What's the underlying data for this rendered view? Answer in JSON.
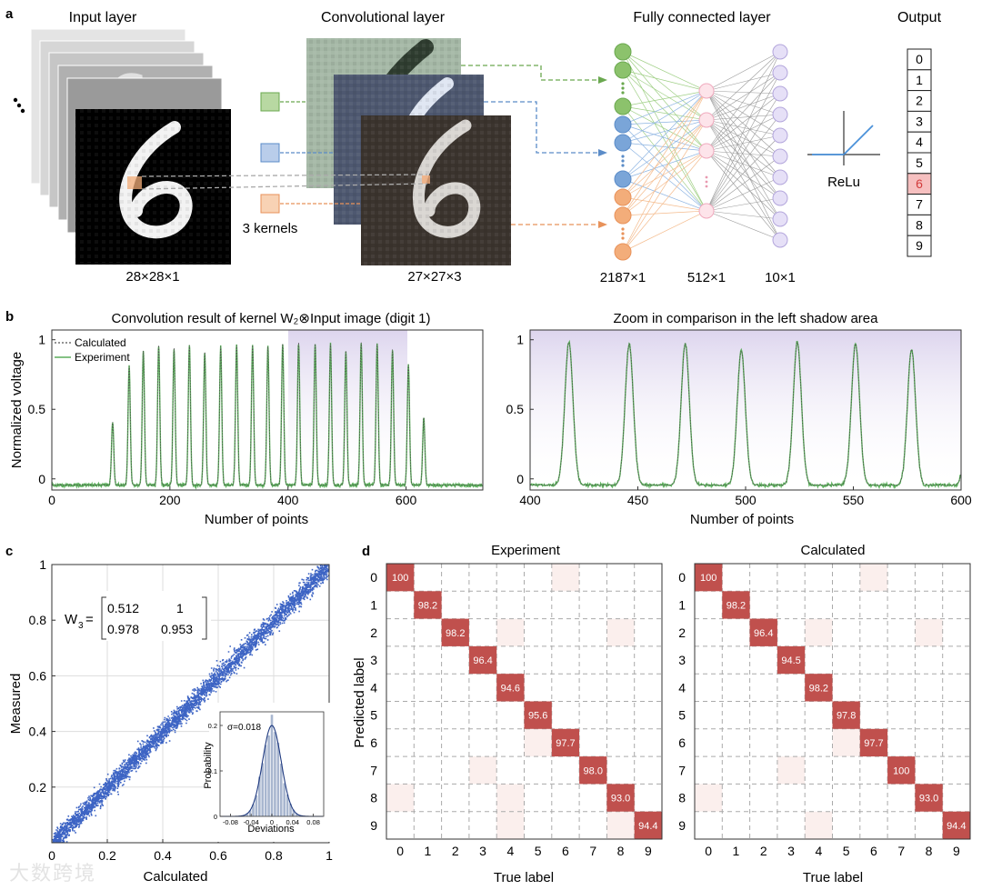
{
  "panel_a": {
    "label": "a",
    "titles": {
      "input": "Input layer",
      "conv": "Convolutional layer",
      "fc": "Fully connected layer",
      "output": "Output"
    },
    "kernels_label": "3 kernels",
    "dims": {
      "input": "28×28×1",
      "conv": "27×27×3",
      "fc1": "2187×1",
      "fc2": "512×1",
      "fc3": "10×1"
    },
    "relu_label": "ReLu",
    "output_digits": [
      "0",
      "1",
      "2",
      "3",
      "4",
      "5",
      "6",
      "7",
      "8",
      "9"
    ],
    "highlighted_output": "6",
    "input_digit": "6",
    "colors": {
      "green": "#8cc26c",
      "blue": "#7aa5d8",
      "orange": "#f3ad7a",
      "pink": "#f6c6d2",
      "purple": "#d7cff0",
      "highlight": "#f6c0c0"
    }
  },
  "panel_b": {
    "label": "b",
    "left_title": "Convolution result of kernel W₂⊗Input image (digit 1)",
    "right_title": "Zoom in comparison in the left shadow area",
    "legend": [
      "Calculated",
      "Experiment"
    ],
    "ylabel": "Normalized voltage",
    "xlabel": "Number of points",
    "left_xticks": [
      "0",
      "200",
      "400",
      "600"
    ],
    "right_xticks": [
      "400",
      "450",
      "500",
      "550",
      "600"
    ],
    "yticks": [
      "0",
      "0.5",
      "1"
    ]
  },
  "panel_c": {
    "label": "c",
    "xlabel": "Calculated",
    "ylabel": "Measured",
    "xticks": [
      "0",
      "0.2",
      "0.4",
      "0.6",
      "0.8",
      "1"
    ],
    "yticks": [
      "0.2",
      "0.4",
      "0.6",
      "0.8",
      "1"
    ],
    "matrix_name": "W",
    "matrix_sub": "3",
    "matrix": [
      [
        "0.512",
        "1"
      ],
      [
        "0.978",
        "0.953"
      ]
    ],
    "inset": {
      "sigma": "σ=0.018",
      "xlabel": "Deviations",
      "ylabel": "Probability",
      "xticks": [
        "-0.08",
        "-0.04",
        "0",
        "0.04",
        "0.08"
      ],
      "yticks": [
        "0",
        "0.1",
        "0.2"
      ]
    }
  },
  "panel_d": {
    "label": "d",
    "xlabel": "True label",
    "ylabel": "Predicted label",
    "ticks": [
      "0",
      "1",
      "2",
      "3",
      "4",
      "5",
      "6",
      "7",
      "8",
      "9"
    ],
    "matrices": [
      {
        "title": "Experiment",
        "diagonal": [
          "100",
          "98.2",
          "98.2",
          "96.4",
          "94.6",
          "95.6",
          "97.7",
          "98.0",
          "93.0",
          "94.4"
        ]
      },
      {
        "title": "Calculated",
        "diagonal": [
          "100",
          "98.2",
          "96.4",
          "94.5",
          "98.2",
          "97.8",
          "97.7",
          "100",
          "93.0",
          "94.4"
        ]
      }
    ]
  },
  "chart_data": [
    {
      "type": "line",
      "title": "Convolution result of kernel W₂⊗Input image (digit 1)",
      "xlabel": "Number of points",
      "ylabel": "Normalized voltage",
      "xlim": [
        0,
        730
      ],
      "ylim": [
        -0.08,
        1.07
      ],
      "series": [
        {
          "name": "Calculated",
          "peaks_x": [
            103,
            131,
            155,
            181,
            207,
            233,
            259,
            286,
            313,
            340,
            366,
            391,
            418,
            446,
            472,
            498,
            524,
            551,
            577,
            604,
            630
          ],
          "peaks_y": [
            0.41,
            0.81,
            0.92,
            0.96,
            0.94,
            0.96,
            0.91,
            0.95,
            0.96,
            0.96,
            0.95,
            0.97,
            0.98,
            0.97,
            0.97,
            0.92,
            0.98,
            0.97,
            0.93,
            0.82,
            0.44
          ]
        },
        {
          "name": "Experiment",
          "peaks_x": [
            103,
            131,
            155,
            181,
            207,
            233,
            259,
            286,
            313,
            340,
            366,
            391,
            418,
            446,
            472,
            498,
            524,
            551,
            577,
            604,
            630
          ],
          "peaks_y": [
            0.41,
            0.81,
            0.92,
            0.96,
            0.94,
            0.96,
            0.91,
            0.95,
            0.96,
            0.96,
            0.95,
            0.97,
            0.98,
            0.97,
            0.97,
            0.92,
            0.98,
            0.97,
            0.93,
            0.82,
            0.44
          ]
        }
      ],
      "shaded_region": [
        400,
        600
      ]
    },
    {
      "type": "line",
      "title": "Zoom in comparison in the left shadow area",
      "xlabel": "Number of points",
      "xlim": [
        400,
        600
      ],
      "ylim": [
        -0.08,
        1.07
      ],
      "series": [
        {
          "name": "Experiment",
          "peaks_x": [
            418,
            446,
            472,
            498,
            524,
            551,
            577
          ],
          "peaks_y": [
            0.98,
            0.97,
            0.97,
            0.92,
            0.98,
            0.97,
            0.93
          ]
        }
      ]
    },
    {
      "type": "scatter",
      "xlabel": "Calculated",
      "ylabel": "Measured",
      "xlim": [
        0,
        1
      ],
      "ylim": [
        0,
        1
      ],
      "relation": "y = x",
      "noise_sigma": 0.018
    },
    {
      "type": "heatmap",
      "title": "Experiment",
      "xlabel": "True label",
      "ylabel": "Predicted label",
      "diagonal": [
        100,
        98.2,
        98.2,
        96.4,
        94.6,
        95.6,
        97.7,
        98.0,
        93.0,
        94.4
      ]
    },
    {
      "type": "heatmap",
      "title": "Calculated",
      "xlabel": "True label",
      "ylabel": "Predicted label",
      "diagonal": [
        100,
        98.2,
        96.4,
        94.5,
        98.2,
        97.8,
        97.7,
        100,
        93.0,
        94.4
      ]
    }
  ]
}
